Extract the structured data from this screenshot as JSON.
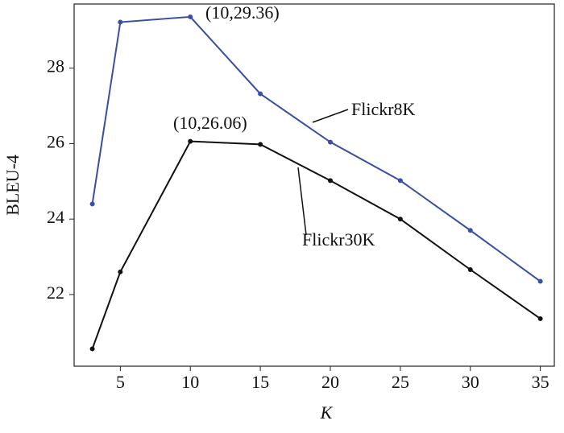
{
  "chart_data": {
    "type": "line",
    "x_label": "K",
    "y_label": "BLEU-4",
    "x": [
      3,
      5,
      10,
      15,
      20,
      25,
      30,
      35
    ],
    "series": [
      {
        "name": "Flickr8K",
        "color": "#3a4fa0",
        "values": [
          24.4,
          29.22,
          29.36,
          27.32,
          26.04,
          25.02,
          23.7,
          22.35
        ]
      },
      {
        "name": "Flickr30K",
        "color": "#111111",
        "values": [
          20.56,
          22.6,
          26.06,
          25.98,
          25.02,
          24.0,
          22.66,
          21.36
        ]
      }
    ],
    "annotations": [
      "(10,29.36)",
      "(10,26.06)"
    ],
    "xlim": [
      1.7,
      36
    ],
    "xticks": [
      5,
      10,
      15,
      20,
      25,
      30,
      35
    ],
    "ylim": [
      20.1,
      29.7
    ],
    "yticks": [
      22,
      24,
      26,
      28
    ]
  }
}
